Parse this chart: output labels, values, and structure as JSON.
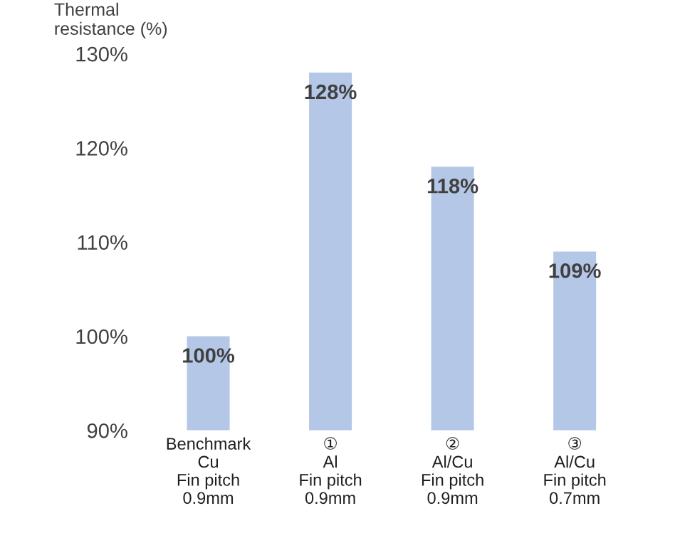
{
  "chart_data": {
    "type": "bar",
    "ylabel": "Thermal\nresistance (%)",
    "categories": [
      "Benchmark\nCu\nFin pitch\n0.9mm",
      "①\nAl\nFin pitch\n0.9mm",
      "②\nAl/Cu\nFin pitch\n0.9mm",
      "③\nAl/Cu\nFin pitch\n0.7mm"
    ],
    "values": [
      100,
      128,
      118,
      109
    ],
    "value_labels": [
      "100%",
      "128%",
      "118%",
      "109%"
    ],
    "color": "#b4c7e7",
    "ylim": [
      90,
      130
    ],
    "yticks": [
      {
        "value": 90,
        "label": "90%"
      },
      {
        "value": 100,
        "label": "100%"
      },
      {
        "value": 110,
        "label": "110%"
      },
      {
        "value": 120,
        "label": "120%"
      },
      {
        "value": 130,
        "label": "130%"
      }
    ],
    "grid": false
  }
}
